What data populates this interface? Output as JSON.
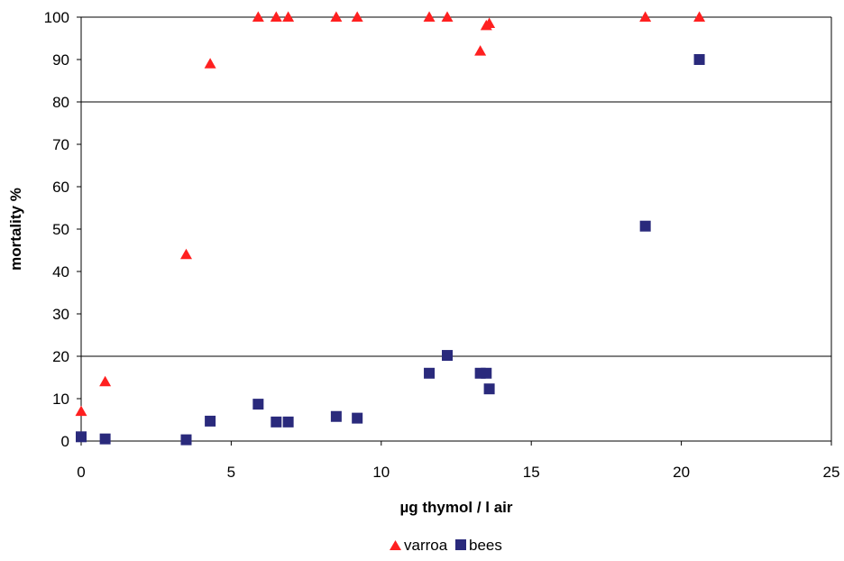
{
  "chart_data": {
    "type": "scatter",
    "title": "",
    "xlabel": "µg thymol / l air",
    "ylabel": "mortality %",
    "xlim": [
      0,
      25
    ],
    "ylim": [
      0,
      100
    ],
    "x_ticks": [
      "0",
      "5",
      "10",
      "15",
      "20",
      "25"
    ],
    "y_ticks": [
      "0",
      "10",
      "20",
      "30",
      "40",
      "50",
      "60",
      "70",
      "80",
      "90",
      "100"
    ],
    "gridlines_y": [
      20,
      80,
      100
    ],
    "legend_position": "bottom",
    "series": [
      {
        "name": "varroa",
        "marker": "triangle",
        "color": "#ff2020",
        "points": [
          [
            0.0,
            7
          ],
          [
            0.8,
            14
          ],
          [
            3.5,
            44
          ],
          [
            4.3,
            89
          ],
          [
            5.9,
            100
          ],
          [
            6.5,
            100
          ],
          [
            6.9,
            100
          ],
          [
            8.5,
            100
          ],
          [
            9.2,
            100
          ],
          [
            11.6,
            100
          ],
          [
            12.2,
            100
          ],
          [
            13.3,
            92
          ],
          [
            13.5,
            98
          ],
          [
            13.6,
            98.5
          ],
          [
            18.8,
            100
          ],
          [
            20.6,
            100
          ]
        ]
      },
      {
        "name": "bees",
        "marker": "square",
        "color": "#2a2a7c",
        "points": [
          [
            0.0,
            1
          ],
          [
            0.8,
            0.5
          ],
          [
            3.5,
            0.3
          ],
          [
            4.3,
            4.7
          ],
          [
            5.9,
            8.7
          ],
          [
            6.5,
            4.5
          ],
          [
            6.9,
            4.5
          ],
          [
            8.5,
            5.8
          ],
          [
            9.2,
            5.4
          ],
          [
            11.6,
            16
          ],
          [
            12.2,
            20.2
          ],
          [
            13.3,
            16
          ],
          [
            13.5,
            16
          ],
          [
            13.6,
            12.3
          ],
          [
            18.8,
            50.7
          ],
          [
            20.6,
            90
          ]
        ]
      }
    ]
  }
}
